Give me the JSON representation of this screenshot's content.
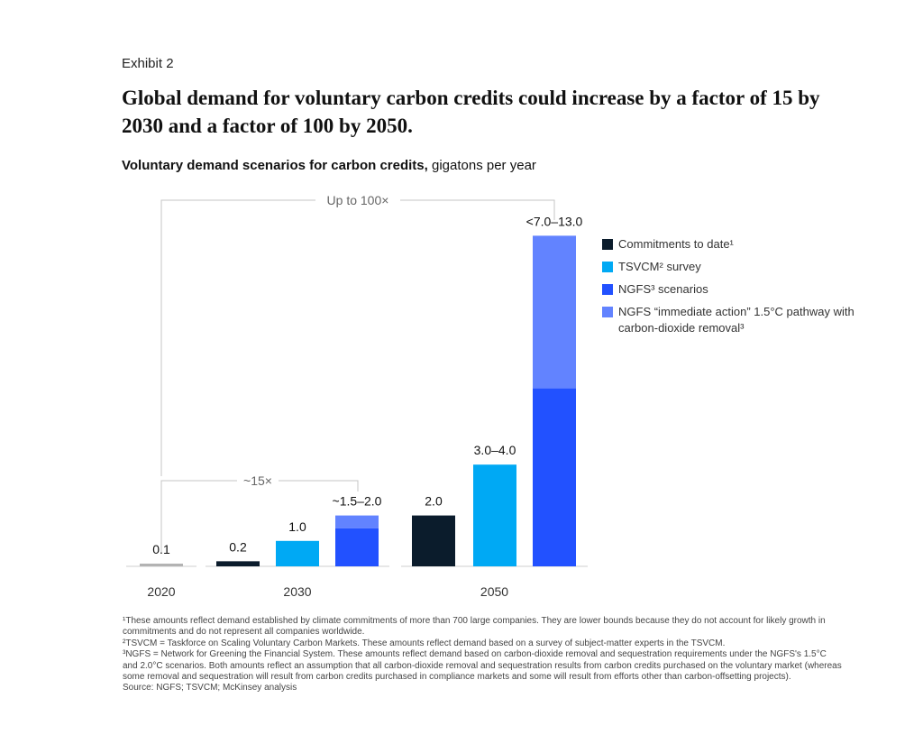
{
  "exhibit_label": "Exhibit 2",
  "title": "Global demand for voluntary carbon credits could increase by a factor of 15 by 2030 and a factor of 100 by 2050.",
  "subtitle_bold": "Voluntary demand scenarios for carbon credits,",
  "subtitle_unit": " gigatons per year",
  "colors": {
    "commitments": "#0b1c2c",
    "tsvcm": "#00a9f4",
    "ngfs": "#2251ff",
    "ngfs_immediate": "#6283ff",
    "baseline_2020": "#b3b3b3",
    "bracket": "#c4c4c4"
  },
  "legend": [
    {
      "key": "commitments",
      "label": "Commitments to date¹"
    },
    {
      "key": "tsvcm",
      "label": "TSVCM² survey"
    },
    {
      "key": "ngfs",
      "label": "NGFS³ scenarios"
    },
    {
      "key": "ngfs_immediate",
      "label": "NGFS “immediate action” 1.5°C pathway with carbon-dioxide removal³"
    }
  ],
  "chart_data": {
    "type": "bar",
    "stacked": true,
    "unit": "gigatons per year",
    "ylim": [
      0,
      13
    ],
    "groups": [
      "2020",
      "2030",
      "2050"
    ],
    "bars": [
      {
        "group": "2020",
        "series": "commitments",
        "label": "0.1",
        "segments": [
          {
            "color_key": "baseline_2020",
            "value": 0.1
          }
        ]
      },
      {
        "group": "2030",
        "series": "commitments",
        "label": "0.2",
        "segments": [
          {
            "color_key": "commitments",
            "value": 0.2
          }
        ]
      },
      {
        "group": "2030",
        "series": "tsvcm",
        "label": "1.0",
        "segments": [
          {
            "color_key": "tsvcm",
            "value": 1.0
          }
        ]
      },
      {
        "group": "2030",
        "series": "ngfs",
        "label": "~1.5–2.0",
        "segments": [
          {
            "color_key": "ngfs",
            "value": 1.5
          },
          {
            "color_key": "ngfs_immediate",
            "value": 0.5
          }
        ]
      },
      {
        "group": "2050",
        "series": "commitments",
        "label": "2.0",
        "segments": [
          {
            "color_key": "commitments",
            "value": 2.0
          }
        ]
      },
      {
        "group": "2050",
        "series": "tsvcm",
        "label": "3.0–4.0",
        "segments": [
          {
            "color_key": "tsvcm",
            "value": 4.0
          }
        ]
      },
      {
        "group": "2050",
        "series": "ngfs",
        "label": "<7.0–13.0",
        "segments": [
          {
            "color_key": "ngfs",
            "value": 7.0
          },
          {
            "color_key": "ngfs_immediate",
            "value": 6.0
          }
        ]
      }
    ],
    "annotations": [
      {
        "label": "~15×",
        "from": "2020",
        "to": "2030"
      },
      {
        "label": "Up to 100×",
        "from": "2020",
        "to": "2050"
      }
    ]
  },
  "footnotes": [
    "¹These amounts reflect demand established by climate commitments of more than 700 large companies. They are lower bounds because they do not account for likely growth in commitments and do not represent all companies worldwide.",
    "²TSVCM = Taskforce on Scaling Voluntary Carbon Markets. These amounts reflect demand based on a survey of subject-matter experts in the TSVCM.",
    "³NGFS = Network for Greening the Financial System. These amounts reflect demand based on carbon-dioxide removal and sequestration requirements under the NGFS's 1.5°C and 2.0°C scenarios. Both amounts reflect an assumption that all carbon-dioxide removal and sequestration results from carbon credits purchased on the voluntary market (whereas some removal and sequestration will result from carbon credits purchased in compliance markets and some will result from efforts other than carbon-offsetting projects).",
    "Source: NGFS; TSVCM; McKinsey analysis"
  ]
}
